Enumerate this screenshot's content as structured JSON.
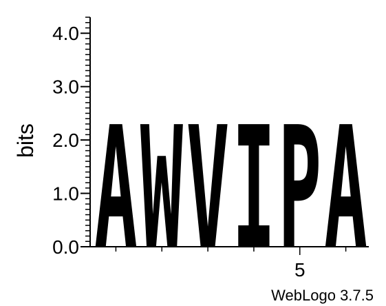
{
  "chart_data": {
    "type": "sequence-logo",
    "ylabel": "bits",
    "ylim": [
      0,
      4.3
    ],
    "y_ticks": [
      {
        "value": 0,
        "label": "0.0"
      },
      {
        "value": 1,
        "label": "1.0"
      },
      {
        "value": 2,
        "label": "2.0"
      },
      {
        "value": 3,
        "label": "3.0"
      },
      {
        "value": 4,
        "label": "4.0"
      }
    ],
    "x_ticks": [
      {
        "position": 5,
        "label": "5"
      }
    ],
    "positions": [
      {
        "position": 1,
        "letter": "A",
        "bits": 2.3
      },
      {
        "position": 2,
        "letter": "W",
        "bits": 2.3
      },
      {
        "position": 3,
        "letter": "V",
        "bits": 2.3
      },
      {
        "position": 4,
        "letter": "I",
        "bits": 2.3
      },
      {
        "position": 5,
        "letter": "P",
        "bits": 2.3
      },
      {
        "position": 6,
        "letter": "A",
        "bits": 2.3
      }
    ],
    "grid": false,
    "footer": "WebLogo 3.7.5",
    "letter_color": "#000000"
  }
}
